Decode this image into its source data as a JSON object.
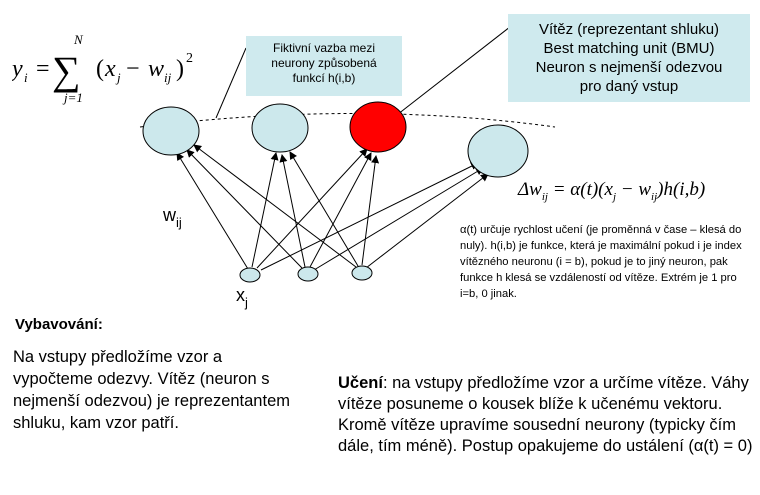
{
  "formula_sum": {
    "lhs": "y",
    "lhs_sub": "i",
    "equals": "=",
    "upper_limit": "N",
    "lower_limit": "j=1",
    "open": "(",
    "x": "x",
    "x_sub": "j",
    "minus": " − ",
    "w": "w",
    "w_sub": "ij",
    "close": ")",
    "power": "2"
  },
  "callout_fictive": {
    "line1": "Fiktivní vazba mezi",
    "line2": "neurony způsobená",
    "line3": "funkcí h(i,b)"
  },
  "callout_winner": {
    "line1": "Vítěz (reprezentant shluku)",
    "line2": "Best matching unit (BMU)",
    "line3": "Neuron s nejmenší odezvou",
    "line4": "pro daný vstup"
  },
  "formula_update": {
    "delta": "Δw",
    "delta_sub": "ij",
    "rhs": " = α(t)(x",
    "rhs_sub1": "j",
    "rhs_mid": " − w",
    "rhs_sub2": "ij",
    "rhs_end": ")h(i,b)"
  },
  "learning_rate_note": "α(t) určuje rychlost učení (je proměnná v čase – klesá do nuly). h(i,b) je funkce, která je maximální pokud i je index vítězného neuronu (i = b), pokud je to jiný neuron, pak funkce h klesá se vzdáleností od vítěze. Extrém je 1 pro i=b, 0 jinak.",
  "labels": {
    "weights": "w",
    "weights_sub": "ij",
    "inputs": "x",
    "inputs_sub": "j"
  },
  "recall": {
    "title": "Vybavování:",
    "text": "Na vstupy předložíme vzor a vypočteme odezvy. Vítěz (neuron s nejmenší odezvou) je reprezentantem shluku, kam vzor patří."
  },
  "learning": {
    "title": "Učení",
    "text": ": na vstupy předložíme vzor a určíme vítěze. Váhy vítěze posuneme o kousek blíže k učenému vektoru. Kromě vítěze upravíme sousední neurony (typicky čím dále, tím méně). Postup opakujeme do ustálení (α(t) = 0)"
  },
  "colors": {
    "neuron_fill": "#cce8ec",
    "winner_fill": "#ff0000",
    "callout_fill": "#cfeaee",
    "stroke": "#000000"
  }
}
